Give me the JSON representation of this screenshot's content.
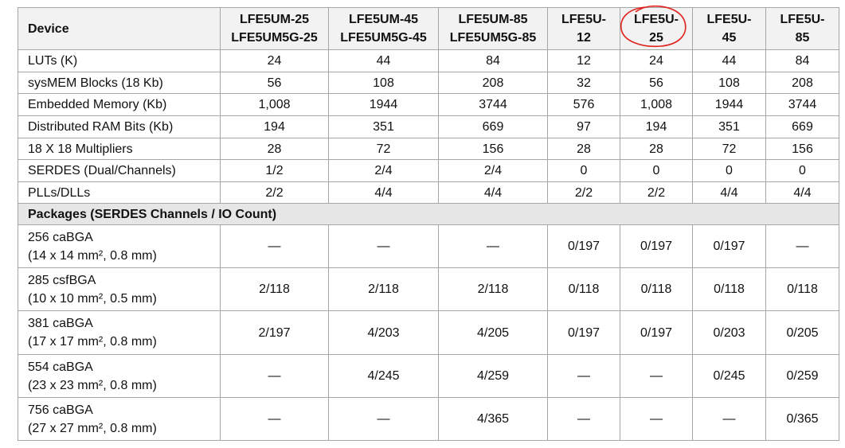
{
  "table": {
    "header": [
      [
        "Device"
      ],
      [
        "LFE5UM-25",
        "LFE5UM5G-25"
      ],
      [
        "LFE5UM-45",
        "LFE5UM5G-45"
      ],
      [
        "LFE5UM-85",
        "LFE5UM5G-85"
      ],
      [
        "LFE5U-",
        "12"
      ],
      [
        "LFE5U-",
        "25"
      ],
      [
        "LFE5U-",
        "45"
      ],
      [
        "LFE5U-",
        "85"
      ]
    ],
    "rows": [
      [
        "LUTs (K)",
        "24",
        "44",
        "84",
        "12",
        "24",
        "44",
        "84"
      ],
      [
        "sysMEM Blocks (18 Kb)",
        "56",
        "108",
        "208",
        "32",
        "56",
        "108",
        "208"
      ],
      [
        "Embedded Memory (Kb)",
        "1,008",
        "1944",
        "3744",
        "576",
        "1,008",
        "1944",
        "3744"
      ],
      [
        "Distributed RAM Bits (Kb)",
        "194",
        "351",
        "669",
        "97",
        "194",
        "351",
        "669"
      ],
      [
        "18 X 18 Multipliers",
        "28",
        "72",
        "156",
        "28",
        "28",
        "72",
        "156"
      ],
      [
        "SERDES (Dual/Channels)",
        "1/2",
        "2/4",
        "2/4",
        "0",
        "0",
        "0",
        "0"
      ],
      [
        "PLLs/DLLs",
        "2/2",
        "4/4",
        "4/4",
        "2/2",
        "2/2",
        "4/4",
        "4/4"
      ]
    ],
    "section": "Packages  (SERDES Channels / IO Count)",
    "packages": [
      {
        "name": "256 caBGA",
        "size": "(14 x 14 mm², 0.8 mm)",
        "cells": [
          "—",
          "—",
          "—",
          "0/197",
          "0/197",
          "0/197",
          "—"
        ]
      },
      {
        "name": "285 csfBGA",
        "size": "(10 x 10 mm², 0.5 mm)",
        "cells": [
          "2/118",
          "2/118",
          "2/118",
          "0/118",
          "0/118",
          "0/118",
          "0/118"
        ]
      },
      {
        "name": "381 caBGA",
        "size": "(17 x 17 mm², 0.8 mm)",
        "cells": [
          "2/197",
          "4/203",
          "4/205",
          "0/197",
          "0/197",
          "0/203",
          "0/205"
        ]
      },
      {
        "name": "554 caBGA",
        "size": "(23 x 23 mm², 0.8 mm)",
        "cells": [
          "—",
          "4/245",
          "4/259",
          "—",
          "—",
          "0/245",
          "0/259"
        ]
      },
      {
        "name": "756 caBGA",
        "size": "(27 x 27 mm², 0.8 mm)",
        "cells": [
          "—",
          "—",
          "4/365",
          "—",
          "—",
          "—",
          "0/365"
        ]
      }
    ]
  }
}
